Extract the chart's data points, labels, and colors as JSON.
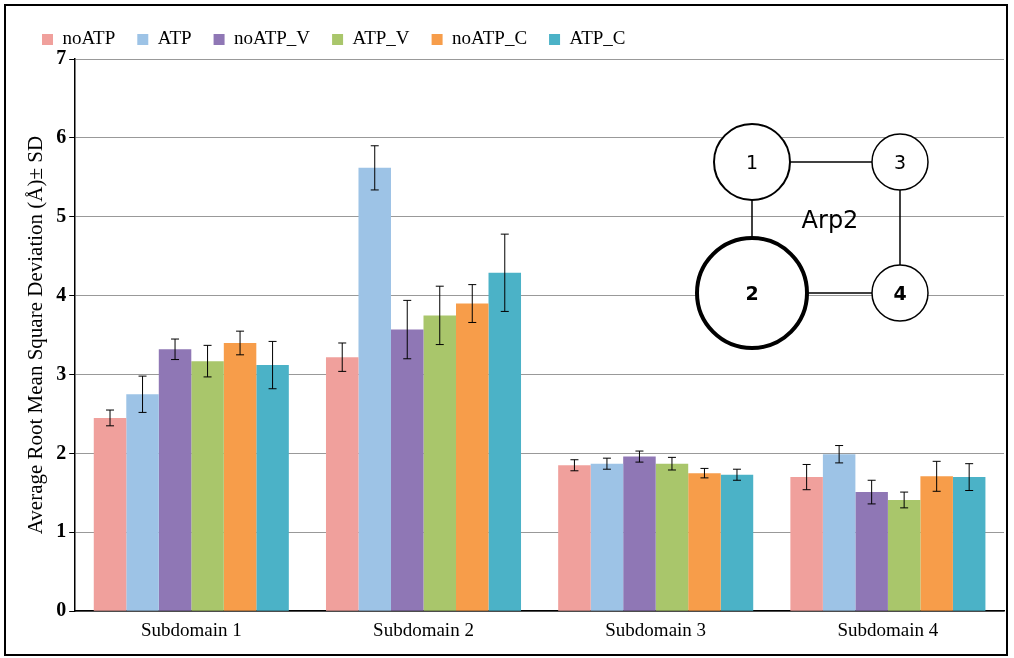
{
  "chart_data": {
    "type": "bar",
    "ylabel": "Average Root Mean Square Deviation (Å)± SD",
    "categories": [
      "Subdomain 1",
      "Subdomain 2",
      "Subdomain 3",
      "Subdomain 4"
    ],
    "series": [
      {
        "name": "noATP",
        "color": "#f0a09c",
        "values": [
          2.45,
          3.22,
          1.85,
          1.7
        ],
        "errors": [
          0.1,
          0.18,
          0.07,
          0.16
        ]
      },
      {
        "name": "ATP",
        "color": "#9dc3e6",
        "values": [
          2.75,
          5.62,
          1.87,
          1.99
        ],
        "errors": [
          0.23,
          0.28,
          0.07,
          0.11
        ]
      },
      {
        "name": "noATP_V",
        "color": "#8f77b5",
        "values": [
          3.32,
          3.57,
          1.96,
          1.51
        ],
        "errors": [
          0.13,
          0.37,
          0.07,
          0.15
        ]
      },
      {
        "name": "ATP_V",
        "color": "#a9c66b",
        "values": [
          3.17,
          3.75,
          1.87,
          1.41
        ],
        "errors": [
          0.2,
          0.37,
          0.08,
          0.1
        ]
      },
      {
        "name": "noATP_C",
        "color": "#f79d4a",
        "values": [
          3.4,
          3.9,
          1.75,
          1.71
        ],
        "errors": [
          0.15,
          0.24,
          0.06,
          0.19
        ]
      },
      {
        "name": "ATP_C",
        "color": "#4bb2c7",
        "values": [
          3.12,
          4.29,
          1.73,
          1.7
        ],
        "errors": [
          0.3,
          0.49,
          0.07,
          0.17
        ]
      }
    ],
    "ylim": [
      0,
      7
    ],
    "yticks": [
      0,
      1,
      2,
      3,
      4,
      5,
      6,
      7
    ],
    "grid": "y",
    "legend": "top left",
    "annotations": [
      "1",
      "3",
      "2",
      "4",
      "Arp2"
    ]
  }
}
